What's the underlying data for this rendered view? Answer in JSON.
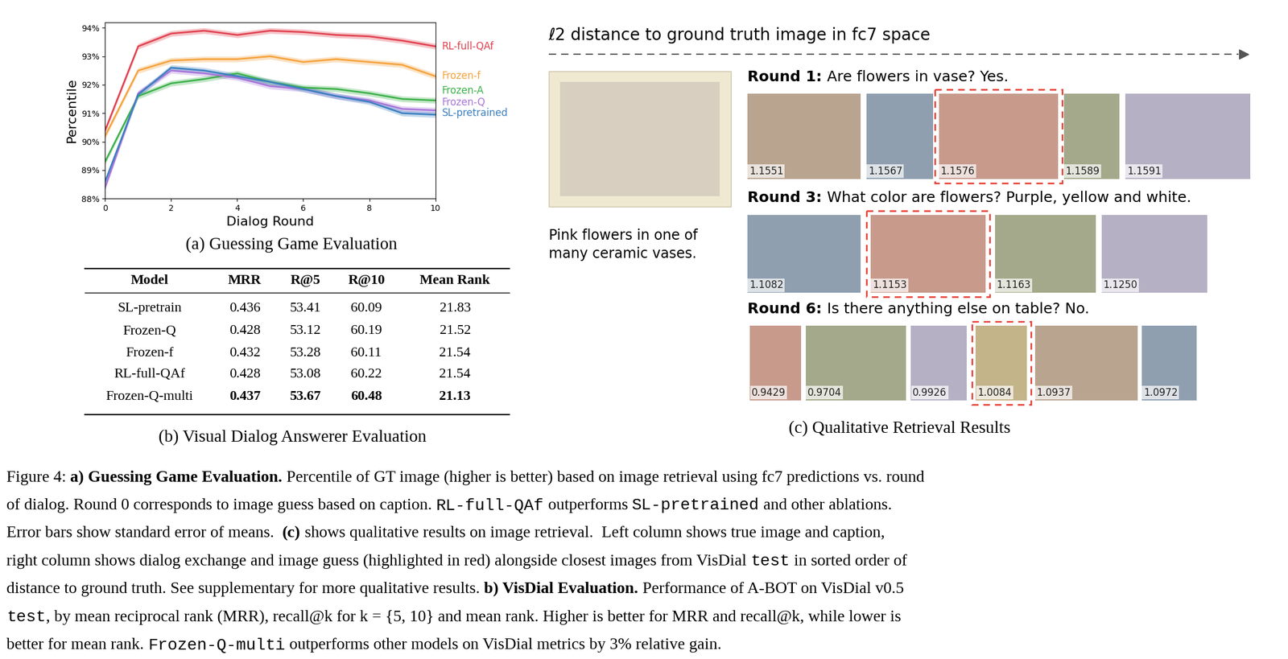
{
  "chart_data": {
    "type": "line",
    "title": "(a) Guessing Game Evaluation",
    "x_label": "Dialog Round",
    "y_label": "Percentile",
    "x": [
      0,
      1,
      2,
      3,
      4,
      5,
      6,
      7,
      8,
      9,
      10
    ],
    "xlim": [
      0,
      10
    ],
    "xticks": [
      0,
      2,
      4,
      6,
      8,
      10
    ],
    "ylim": [
      88,
      94.2
    ],
    "yticks": [
      {
        "value": 88,
        "label": "88%"
      },
      {
        "value": 89,
        "label": "89%"
      },
      {
        "value": 90,
        "label": "90%"
      },
      {
        "value": 91,
        "label": "91%"
      },
      {
        "value": 92,
        "label": "92%"
      },
      {
        "value": 93,
        "label": "93%"
      },
      {
        "value": 94,
        "label": "94%"
      }
    ],
    "series": [
      {
        "name": "RL-full-QAf",
        "color": "#e0404e",
        "values": [
          90.4,
          93.35,
          93.8,
          93.9,
          93.75,
          93.9,
          93.85,
          93.75,
          93.7,
          93.55,
          93.35
        ],
        "error": [
          0.1,
          0.1,
          0.1,
          0.1,
          0.1,
          0.1,
          0.1,
          0.1,
          0.1,
          0.1,
          0.1
        ]
      },
      {
        "name": "Frozen-f",
        "color": "#f5a23c",
        "values": [
          90.2,
          92.5,
          92.85,
          92.9,
          92.9,
          93.0,
          92.8,
          92.9,
          92.8,
          92.7,
          92.3
        ],
        "error": [
          0.1,
          0.1,
          0.1,
          0.1,
          0.1,
          0.1,
          0.1,
          0.1,
          0.1,
          0.1,
          0.1
        ]
      },
      {
        "name": "Frozen-A",
        "color": "#3cb04a",
        "values": [
          89.3,
          91.6,
          92.05,
          92.2,
          92.4,
          92.1,
          91.9,
          91.85,
          91.7,
          91.5,
          91.45
        ],
        "error": [
          0.1,
          0.1,
          0.1,
          0.1,
          0.1,
          0.1,
          0.1,
          0.1,
          0.1,
          0.1,
          0.1
        ]
      },
      {
        "name": "Frozen-Q",
        "color": "#a875d8",
        "values": [
          88.4,
          91.7,
          92.5,
          92.4,
          92.25,
          91.95,
          91.85,
          91.6,
          91.45,
          91.15,
          91.1
        ],
        "error": [
          0.1,
          0.1,
          0.1,
          0.1,
          0.1,
          0.1,
          0.1,
          0.1,
          0.1,
          0.1,
          0.1
        ]
      },
      {
        "name": "SL-pretrained",
        "color": "#3a7fc0",
        "values": [
          88.6,
          91.65,
          92.6,
          92.5,
          92.3,
          92.1,
          91.85,
          91.6,
          91.4,
          91.0,
          90.95
        ],
        "error": [
          0.1,
          0.1,
          0.1,
          0.1,
          0.1,
          0.1,
          0.1,
          0.1,
          0.1,
          0.1,
          0.1
        ]
      }
    ]
  },
  "table": {
    "title": "(b) Visual Dialog Answerer Evaluation",
    "header": [
      "Model",
      "MRR",
      "R@5",
      "R@10",
      "Mean Rank"
    ],
    "rows": [
      {
        "cells": [
          "SL-pretrain",
          0.436,
          53.41,
          60.09,
          21.83
        ]
      },
      {
        "cells": [
          "Frozen-Q",
          0.428,
          53.12,
          60.19,
          21.52
        ]
      },
      {
        "cells": [
          "Frozen-f",
          0.432,
          53.28,
          60.11,
          21.54
        ]
      },
      {
        "cells": [
          "RL-full-QAf",
          0.428,
          53.08,
          60.22,
          21.54
        ]
      },
      {
        "cells": [
          "Frozen-Q-multi",
          0.437,
          53.67,
          60.48,
          21.13
        ],
        "bold": true
      }
    ]
  },
  "retrieval": {
    "title": "(c) Qualitative Retrieval Results",
    "axis_title": "ℓ2 distance to ground truth image in fc7 space",
    "ground_truth_caption": "Pink flowers in one of\nmany ceramic vases.",
    "rounds": [
      {
        "label": "Round 1:",
        "question": "Are flowers in vase? Yes.",
        "images": [
          {
            "distance": "1.1551"
          },
          {
            "distance": "1.1567"
          },
          {
            "distance": "1.1576",
            "guess": true
          },
          {
            "distance": "1.1589"
          },
          {
            "distance": "1.1591"
          }
        ]
      },
      {
        "label": "Round 3:",
        "question": "What color are flowers? Purple, yellow and white.",
        "images": [
          {
            "distance": "1.1082"
          },
          {
            "distance": "1.1153",
            "guess": true
          },
          {
            "distance": "1.1163"
          },
          {
            "distance": "1.1250"
          }
        ]
      },
      {
        "label": "Round 6:",
        "question": "Is there anything else on table? No.",
        "images": [
          {
            "distance": "0.9429"
          },
          {
            "distance": "0.9704"
          },
          {
            "distance": "0.9926"
          },
          {
            "distance": "1.0084",
            "guess": true
          },
          {
            "distance": "1.0937"
          },
          {
            "distance": "1.0972"
          }
        ]
      }
    ]
  },
  "caption": [
    [
      {
        "text": "Figure 4: ",
        "style": "plain"
      },
      {
        "text": "a) Guessing Game Evaluation.",
        "style": "bold"
      },
      {
        "text": " Percentile of GT image (higher is better) based on image retrieval using fc7 predictions vs. round",
        "style": "plain"
      }
    ],
    [
      {
        "text": "of dialog. Round 0 corresponds to image guess based on caption. ",
        "style": "plain"
      },
      {
        "text": "RL-full-QAf",
        "style": "mono"
      },
      {
        "text": " outperforms ",
        "style": "plain"
      },
      {
        "text": "SL-pretrained",
        "style": "mono"
      },
      {
        "text": " and other ablations.",
        "style": "plain"
      }
    ],
    [
      {
        "text": "Error bars show standard error of means.  ",
        "style": "plain"
      },
      {
        "text": "(c)",
        "style": "bold"
      },
      {
        "text": " shows qualitative results on image retrieval.  Left column shows true image and caption,",
        "style": "plain"
      }
    ],
    [
      {
        "text": "right column shows dialog exchange and image guess (highlighted in red) alongside closest images from VisDial ",
        "style": "plain"
      },
      {
        "text": "test",
        "style": "mono"
      },
      {
        "text": " in sorted order of",
        "style": "plain"
      }
    ],
    [
      {
        "text": "distance to ground truth. See supplementary for more qualitative results. ",
        "style": "plain"
      },
      {
        "text": "b) VisDial Evaluation.",
        "style": "bold"
      },
      {
        "text": " Performance of A-BOT on VisDial v0.5",
        "style": "plain"
      }
    ],
    [
      {
        "text": "test",
        "style": "mono"
      },
      {
        "text": ", by mean reciprocal rank (MRR), recall@k for k = {5, 10} and mean rank. Higher is better for MRR and recall@k, while lower is",
        "style": "plain"
      }
    ],
    [
      {
        "text": "better for mean rank. ",
        "style": "plain"
      },
      {
        "text": "Frozen-Q-multi",
        "style": "mono"
      },
      {
        "text": " outperforms other models on VisDial metrics by 3% relative gain.",
        "style": "plain"
      }
    ]
  ]
}
